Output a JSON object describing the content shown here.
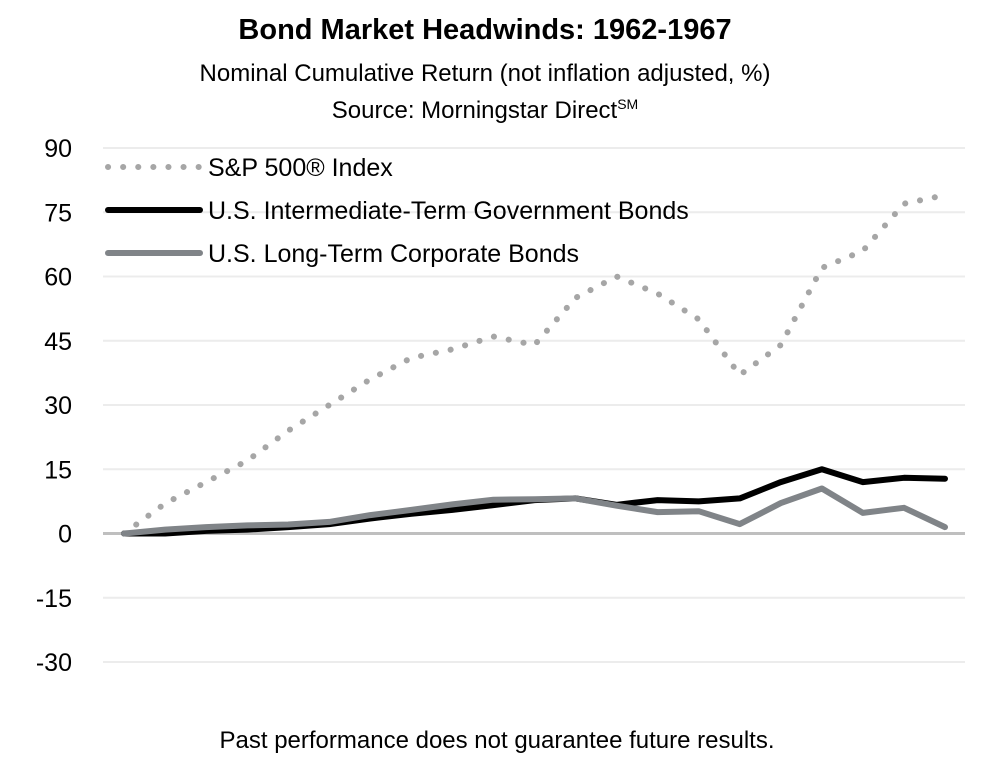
{
  "chart_data": {
    "type": "line",
    "title": "Bond Market Headwinds: 1962-1967",
    "subtitle": "Nominal Cumulative Return (not inflation adjusted, %)",
    "source": "Source: Morningstar Direct",
    "source_superscript": "SM",
    "footer": "Past performance does not guarantee future results.",
    "ylim": [
      -30,
      90
    ],
    "yticks": [
      90,
      75,
      60,
      45,
      30,
      15,
      0,
      -15,
      -30
    ],
    "ytick_labels": [
      "90",
      "75",
      "60",
      "45",
      "30",
      "15",
      "0",
      "-15",
      "-30"
    ],
    "grid": true,
    "legend_position": "top-left",
    "series": [
      {
        "name": "S&P 500® Index",
        "style": "dotted",
        "color": "#a6a6a6",
        "values": [
          0,
          7,
          12,
          17,
          24,
          30,
          36,
          41,
          43,
          46,
          44,
          55,
          60,
          56,
          50,
          37,
          44,
          62,
          66,
          77,
          79
        ]
      },
      {
        "name": "U.S. Intermediate-Term Government Bonds",
        "style": "solid",
        "color": "#000000",
        "values": [
          0,
          0,
          0.6,
          0.9,
          1.5,
          2.2,
          3.5,
          4.6,
          5.5,
          6.6,
          7.8,
          8.2,
          6.7,
          7.8,
          7.5,
          8.2,
          12,
          15,
          12,
          13,
          12.8
        ]
      },
      {
        "name": "U.S. Long-Term Corporate Bonds",
        "style": "solid",
        "color": "#808488",
        "values": [
          0,
          0.9,
          1.5,
          1.9,
          2.1,
          2.7,
          4.3,
          5.5,
          6.8,
          7.9,
          8,
          8.2,
          6.5,
          5,
          5.2,
          2.2,
          7.1,
          10.5,
          4.8,
          6,
          1.5
        ]
      }
    ]
  }
}
